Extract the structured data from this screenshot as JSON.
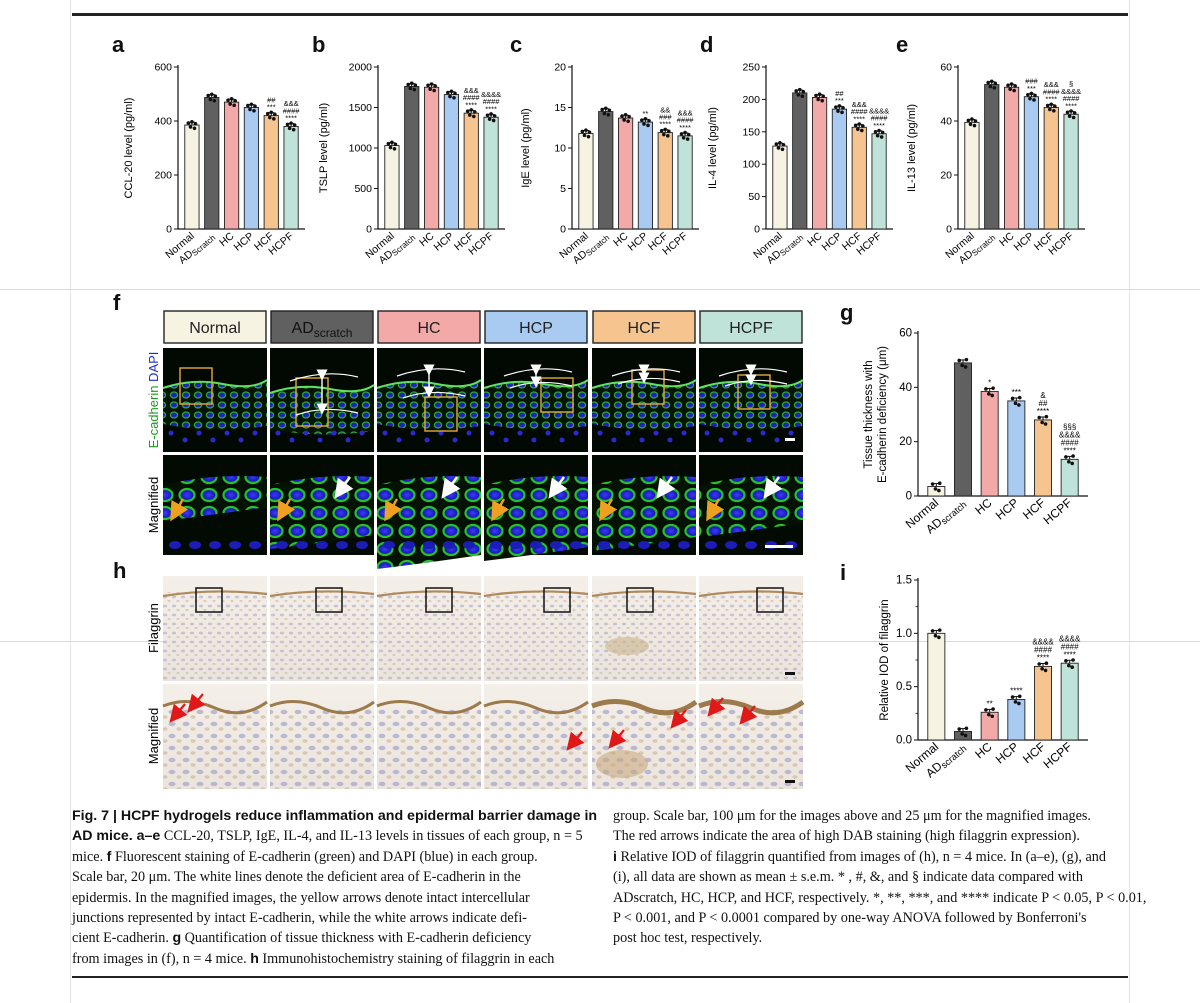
{
  "figure": {
    "letters": [
      "a",
      "b",
      "c",
      "d",
      "e",
      "f",
      "g",
      "h",
      "i"
    ],
    "groups": [
      "Normal",
      "AD",
      "HC",
      "HCP",
      "HCF",
      "HCPF"
    ],
    "group_sub": "Scratch",
    "group_sub_f": "scratch",
    "group_colors": [
      "#f7f3e3",
      "#606060",
      "#f3a9a7",
      "#a9cbf2",
      "#f6c58f",
      "#bfe3d8"
    ],
    "panel_f": {
      "row_labels": [
        "E-cadherin",
        "DAPI",
        "Magnified"
      ]
    },
    "panel_h": {
      "row_labels": [
        "Filaggrin",
        "Magnified"
      ]
    }
  },
  "chart_data": [
    {
      "panel": "a",
      "type": "bar",
      "ylabel": "CCL-20 level (pg/ml)",
      "ylim": [
        0,
        600
      ],
      "yticks": [
        0,
        200,
        400,
        600
      ],
      "categories": [
        "Normal",
        "ADScratch",
        "HC",
        "HCP",
        "HCF",
        "HCPF"
      ],
      "values": [
        385,
        487,
        470,
        450,
        420,
        380
      ],
      "annotations": [
        "",
        "",
        "",
        "",
        "##\n***",
        "&&&\n####\n****"
      ]
    },
    {
      "panel": "b",
      "type": "bar",
      "ylabel": "TSLP level (pg/ml)",
      "ylim": [
        0,
        2000
      ],
      "yticks": [
        0,
        500,
        1000,
        1500,
        2000
      ],
      "categories": [
        "Normal",
        "ADScratch",
        "HC",
        "HCP",
        "HCF",
        "HCPF"
      ],
      "values": [
        1030,
        1760,
        1750,
        1660,
        1430,
        1380
      ],
      "annotations": [
        "",
        "",
        "",
        "",
        "&&&\n####\n****",
        "&&&&\n####\n****"
      ]
    },
    {
      "panel": "c",
      "type": "bar",
      "ylabel": "IgE level (pg/ml)",
      "ylim": [
        0,
        20
      ],
      "yticks": [
        0,
        5,
        10,
        15,
        20
      ],
      "categories": [
        "Normal",
        "ADScratch",
        "HC",
        "HCP",
        "HCF",
        "HCPF"
      ],
      "values": [
        11.8,
        14.5,
        13.7,
        13.2,
        11.9,
        11.5
      ],
      "annotations": [
        "",
        "",
        "",
        "**",
        "&&\n###\n****",
        "&&&\n####\n****"
      ]
    },
    {
      "panel": "d",
      "type": "bar",
      "ylabel": "IL-4 level (pg/ml)",
      "ylim": [
        0,
        250
      ],
      "yticks": [
        0,
        50,
        100,
        150,
        200,
        250
      ],
      "categories": [
        "Normal",
        "ADScratch",
        "HC",
        "HCP",
        "HCF",
        "HCPF"
      ],
      "values": [
        128,
        210,
        203,
        185,
        157,
        147
      ],
      "annotations": [
        "",
        "",
        "",
        "##\n***",
        "&&&\n####\n****",
        "&&&&\n####\n****"
      ]
    },
    {
      "panel": "e",
      "type": "bar",
      "ylabel": "IL-13 level (pg/ml)",
      "ylim": [
        0,
        60
      ],
      "yticks": [
        0,
        20,
        40,
        60
      ],
      "categories": [
        "Normal",
        "ADScratch",
        "HC",
        "HCP",
        "HCF",
        "HCPF"
      ],
      "values": [
        39.5,
        53.5,
        52.5,
        49,
        45,
        42.5
      ],
      "annotations": [
        "",
        "",
        "",
        "###\n***",
        "&&&\n####\n****",
        "§\n&&&&\n####\n****"
      ]
    },
    {
      "panel": "g",
      "type": "bar",
      "ylabel": "Tissue thickness with\nE-cadherin deficiency (μm)",
      "ylim": [
        0,
        60
      ],
      "yticks": [
        0,
        20,
        40,
        60
      ],
      "categories": [
        "Normal",
        "ADscratch",
        "HC",
        "HCP",
        "HCF",
        "HCPF"
      ],
      "values": [
        3.5,
        49,
        38.5,
        35,
        28,
        13.5
      ],
      "annotations": [
        "",
        "",
        "*",
        "***",
        "&\n##\n****",
        "§§§\n&&&&\n####\n****"
      ]
    },
    {
      "panel": "i",
      "type": "bar",
      "ylabel": "Relative IOD of filaggrin",
      "ylim": [
        0,
        1.5
      ],
      "yticks": [
        0,
        0.5,
        1.0,
        1.5
      ],
      "ytick_labels": [
        "0.0",
        "0.5",
        "1.0",
        "1.5"
      ],
      "categories": [
        "Normal",
        "ADscratch",
        "HC",
        "HCP",
        "HCF",
        "HCPF"
      ],
      "values": [
        1.0,
        0.08,
        0.26,
        0.38,
        0.69,
        0.72
      ],
      "annotations": [
        "",
        "",
        "**",
        "****",
        "&&&&\n####\n****",
        "&&&&\n####\n****"
      ]
    }
  ],
  "caption": {
    "left_lines": [
      {
        "bold": "Fig. 7 | HCPF hydrogels reduce inflammation and epidermal barrier damage in",
        "text": ""
      },
      {
        "bold": "AD mice. a–e",
        "text": " CCL-20, TSLP, IgE, IL-4, and IL-13 levels in tissues of each group, n = 5"
      },
      {
        "bold": "",
        "text": "mice. ",
        "bold2": "f",
        "text2": " Fluorescent staining of E-cadherin (green) and DAPI (blue) in each group."
      },
      {
        "bold": "",
        "text": "Scale bar, 20 μm. The white lines denote the deficient area of E-cadherin in the"
      },
      {
        "bold": "",
        "text": "epidermis. In the magnified images, the yellow arrows denote intact intercellular"
      },
      {
        "bold": "",
        "text": "junctions represented by intact E-cadherin, while the white arrows indicate defi-"
      },
      {
        "bold": "",
        "text": "cient E-cadherin. ",
        "bold2": "g",
        "text2": " Quantification of tissue thickness with E-cadherin deficiency"
      },
      {
        "bold": "",
        "text": "from images in (f), n = 4 mice. ",
        "bold2": "h",
        "text2": " Immunohistochemistry staining of filaggrin in each"
      }
    ],
    "right_lines": [
      {
        "bold": "",
        "text": "group. Scale bar, 100 μm for the images above and 25 μm for the magnified images."
      },
      {
        "bold": "",
        "text": "The red arrows indicate the area of high DAB staining (high filaggrin expression)."
      },
      {
        "bold": "i",
        "text": " Relative IOD of filaggrin quantified from images of (h), n = 4 mice. In (a–e), (g), and"
      },
      {
        "bold": "",
        "text": "(i), all data are shown as mean ± s.e.m. * , #, &, and § indicate data compared with"
      },
      {
        "bold": "",
        "text": "ADscratch, HC, HCP, and HCF, respectively. *, **, ***, and **** indicate P < 0.05, P < 0.01,"
      },
      {
        "bold": "",
        "text": "P < 0.001, and P < 0.0001 compared by one-way ANOVA followed by Bonferroni's"
      },
      {
        "bold": "",
        "text": "post hoc test, respectively."
      }
    ]
  }
}
